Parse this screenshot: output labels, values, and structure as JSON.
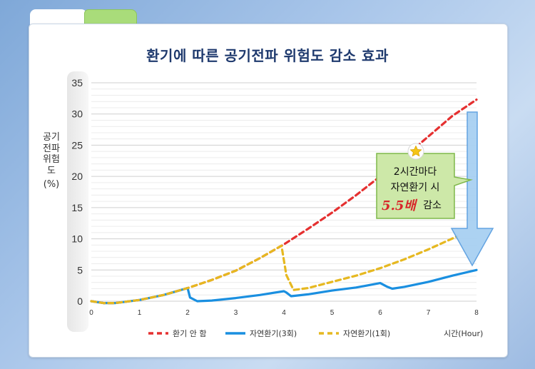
{
  "page": {
    "title": "환기에 따른 공기전파 위험도 감소 효과"
  },
  "chart_data": {
    "type": "line",
    "title": "환기에 따른 공기전파 위험도 감소 효과",
    "ylabel_text": "공기전파 위험도",
    "ylabel_unit": "(%)",
    "xlabel": "시간(Hour)",
    "xlim": [
      0,
      8
    ],
    "ylim": [
      0,
      35
    ],
    "x_ticks": [
      "0",
      "1",
      "2",
      "3",
      "4",
      "5",
      "6",
      "7",
      "8"
    ],
    "y_ticks": [
      "0",
      "5",
      "10",
      "15",
      "20",
      "25",
      "30",
      "35"
    ],
    "grid": true,
    "legend_position": "bottom",
    "series": [
      {
        "name": "환기 안 함",
        "color": "#e53030",
        "style": "dashed",
        "points": [
          [
            0,
            0
          ],
          [
            0.25,
            -0.3
          ],
          [
            0.5,
            -0.3
          ],
          [
            1,
            0.2
          ],
          [
            1.5,
            1
          ],
          [
            2,
            2.1
          ],
          [
            2.5,
            3.4
          ],
          [
            3,
            4.9
          ],
          [
            3.5,
            6.9
          ],
          [
            4,
            9.1
          ],
          [
            4.5,
            11.6
          ],
          [
            5,
            14.2
          ],
          [
            5.5,
            17.0
          ],
          [
            6,
            20.0
          ],
          [
            6.5,
            23.1
          ],
          [
            7,
            26.4
          ],
          [
            7.5,
            29.7
          ],
          [
            8,
            32.3
          ]
        ]
      },
      {
        "name": "자연환기(3회)",
        "color": "#1a8fe0",
        "style": "solid",
        "points": [
          [
            0,
            0
          ],
          [
            0.25,
            -0.3
          ],
          [
            0.5,
            -0.3
          ],
          [
            1,
            0.2
          ],
          [
            1.5,
            1
          ],
          [
            2,
            2.1
          ],
          [
            2.05,
            0.6
          ],
          [
            2.2,
            0
          ],
          [
            2.5,
            0.1
          ],
          [
            3,
            0.5
          ],
          [
            3.5,
            1
          ],
          [
            4,
            1.6
          ],
          [
            4.05,
            1.4
          ],
          [
            4.15,
            0.8
          ],
          [
            4.5,
            1.1
          ],
          [
            5,
            1.7
          ],
          [
            5.5,
            2.2
          ],
          [
            6,
            2.9
          ],
          [
            6.15,
            2.3
          ],
          [
            6.25,
            2.0
          ],
          [
            6.5,
            2.3
          ],
          [
            7,
            3.1
          ],
          [
            7.5,
            4.1
          ],
          [
            8,
            5.0
          ]
        ]
      },
      {
        "name": "자연환기(1회)",
        "color": "#e6b820",
        "style": "dashed",
        "points": [
          [
            0,
            0
          ],
          [
            0.25,
            -0.3
          ],
          [
            0.5,
            -0.3
          ],
          [
            1,
            0.2
          ],
          [
            1.5,
            1
          ],
          [
            2,
            2.1
          ],
          [
            2.5,
            3.4
          ],
          [
            3,
            4.9
          ],
          [
            3.5,
            6.9
          ],
          [
            3.95,
            8.9
          ],
          [
            4.05,
            4.2
          ],
          [
            4.2,
            1.8
          ],
          [
            4.5,
            2.1
          ],
          [
            5,
            3.1
          ],
          [
            5.5,
            4.1
          ],
          [
            6,
            5.3
          ],
          [
            6.5,
            6.7
          ],
          [
            7,
            8.3
          ],
          [
            7.6,
            10.4
          ]
        ]
      }
    ]
  },
  "callout": {
    "line1": "2시간마다",
    "line2": "자연환기 시",
    "emphasis": "5.5배",
    "tail": "감소"
  },
  "colors": {
    "title": "#1f3a6e",
    "callout_fill": "#cde8a8",
    "callout_stroke": "#7fb84a",
    "arrow_fill": "#a8d0f2",
    "arrow_stroke": "#5b9fe0"
  },
  "icons": {
    "callout": "star-icon",
    "indicator": "down-arrow-icon"
  }
}
